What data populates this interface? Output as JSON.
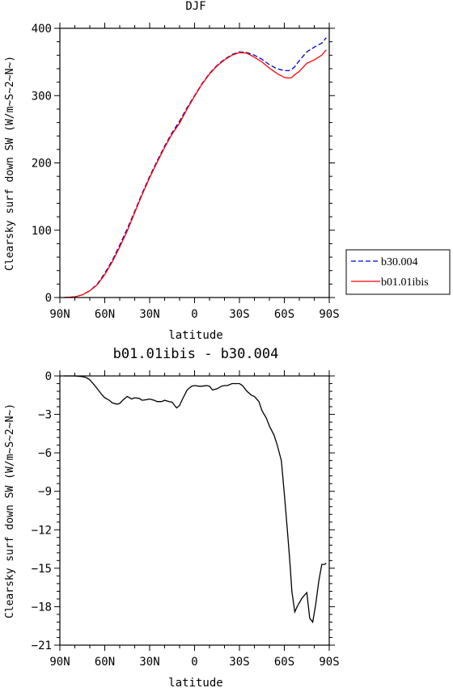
{
  "chart_data": [
    {
      "type": "line",
      "title": "DJF",
      "xlabel": "latitude",
      "ylabel": "Clearsky surf down SW (W/m~S~2~N~)",
      "xlim": [
        -90,
        90
      ],
      "ylim": [
        0,
        400
      ],
      "xticks": [
        -90,
        -60,
        -30,
        0,
        30,
        60,
        90
      ],
      "xtick_labels": [
        "90N",
        "60N",
        "30N",
        "0",
        "30S",
        "60S",
        "90S"
      ],
      "yticks": [
        0,
        100,
        200,
        300,
        400
      ],
      "ytick_labels": [
        "0",
        "100",
        "200",
        "300",
        "400"
      ],
      "grid": false,
      "legend_position": "right",
      "x": [
        -87,
        -80,
        -75,
        -70,
        -65,
        -60,
        -55,
        -50,
        -45,
        -40,
        -35,
        -30,
        -25,
        -20,
        -15,
        -10,
        -5,
        0,
        5,
        10,
        15,
        20,
        25,
        30,
        35,
        40,
        45,
        50,
        55,
        60,
        63,
        65,
        67,
        70,
        75,
        80,
        85,
        88
      ],
      "series": [
        {
          "name": "b30.004",
          "color": "#0000cc",
          "dash": "dashed",
          "values": [
            0,
            1,
            4,
            10,
            20,
            36,
            55,
            78,
            102,
            128,
            155,
            180,
            203,
            225,
            245,
            262,
            282,
            300,
            318,
            333,
            345,
            354,
            361,
            365,
            364,
            360,
            354,
            346,
            340,
            337,
            337,
            339,
            343,
            352,
            365,
            372,
            378,
            386
          ]
        },
        {
          "name": "b01.01ibis",
          "color": "#ff0000",
          "dash": "solid",
          "values": [
            0,
            1,
            4,
            10,
            19,
            34,
            53,
            75,
            99,
            126,
            153,
            178,
            201,
            223,
            243,
            259,
            280,
            299,
            317,
            332,
            344,
            353,
            360,
            364,
            363,
            357,
            350,
            341,
            333,
            327,
            326,
            327,
            331,
            336,
            348,
            353,
            360,
            368
          ]
        }
      ]
    },
    {
      "type": "line",
      "title": "b01.01ibis - b30.004",
      "xlabel": "latitude",
      "ylabel": "Clearsky surf down SW (W/m~S~2~N~)",
      "xlim": [
        -90,
        90
      ],
      "ylim": [
        -21,
        0
      ],
      "xticks": [
        -90,
        -60,
        -30,
        0,
        30,
        60,
        90
      ],
      "xtick_labels": [
        "90N",
        "60N",
        "30N",
        "0",
        "30S",
        "60S",
        "90S"
      ],
      "yticks": [
        0,
        -3,
        -6,
        -9,
        -12,
        -15,
        -18,
        -21
      ],
      "ytick_labels": [
        "0",
        "−3",
        "−6",
        "−9",
        "−12",
        "−15",
        "−18",
        "−21"
      ],
      "grid": false,
      "series": [
        {
          "color": "#000000",
          "dash": "solid",
          "x": [
            -87,
            -80,
            -75,
            -72,
            -70,
            -67,
            -65,
            -62,
            -60,
            -57,
            -55,
            -52,
            -50,
            -48,
            -45,
            -42,
            -40,
            -37,
            -35,
            -32,
            -30,
            -27,
            -25,
            -22,
            -20,
            -17,
            -15,
            -12,
            -10,
            -8,
            -5,
            -2,
            0,
            3,
            5,
            8,
            10,
            12,
            15,
            18,
            20,
            22,
            25,
            28,
            30,
            32,
            35,
            38,
            40,
            43,
            45,
            48,
            50,
            53,
            55,
            58,
            60,
            62,
            63,
            64,
            65,
            67,
            69,
            72,
            75,
            77,
            79,
            81,
            83,
            85,
            87,
            88
          ],
          "values": [
            0,
            0,
            -0.05,
            -0.15,
            -0.3,
            -0.7,
            -1.0,
            -1.45,
            -1.7,
            -1.9,
            -2.1,
            -2.2,
            -2.15,
            -1.9,
            -1.6,
            -1.8,
            -1.7,
            -1.75,
            -1.9,
            -1.85,
            -1.8,
            -1.9,
            -2.0,
            -2.0,
            -1.9,
            -2.0,
            -2.05,
            -2.5,
            -2.3,
            -1.8,
            -1.1,
            -0.8,
            -0.75,
            -0.8,
            -0.8,
            -0.75,
            -0.8,
            -1.1,
            -1.0,
            -0.8,
            -0.75,
            -0.75,
            -0.6,
            -0.6,
            -0.6,
            -0.75,
            -1.2,
            -1.5,
            -1.6,
            -2.0,
            -2.7,
            -3.3,
            -3.9,
            -4.6,
            -5.3,
            -6.6,
            -9.2,
            -12.0,
            -13.5,
            -15.0,
            -16.8,
            -18.4,
            -17.9,
            -17.3,
            -16.9,
            -18.9,
            -19.2,
            -17.8,
            -16.0,
            -14.7,
            -14.7,
            -14.6
          ]
        }
      ]
    }
  ]
}
